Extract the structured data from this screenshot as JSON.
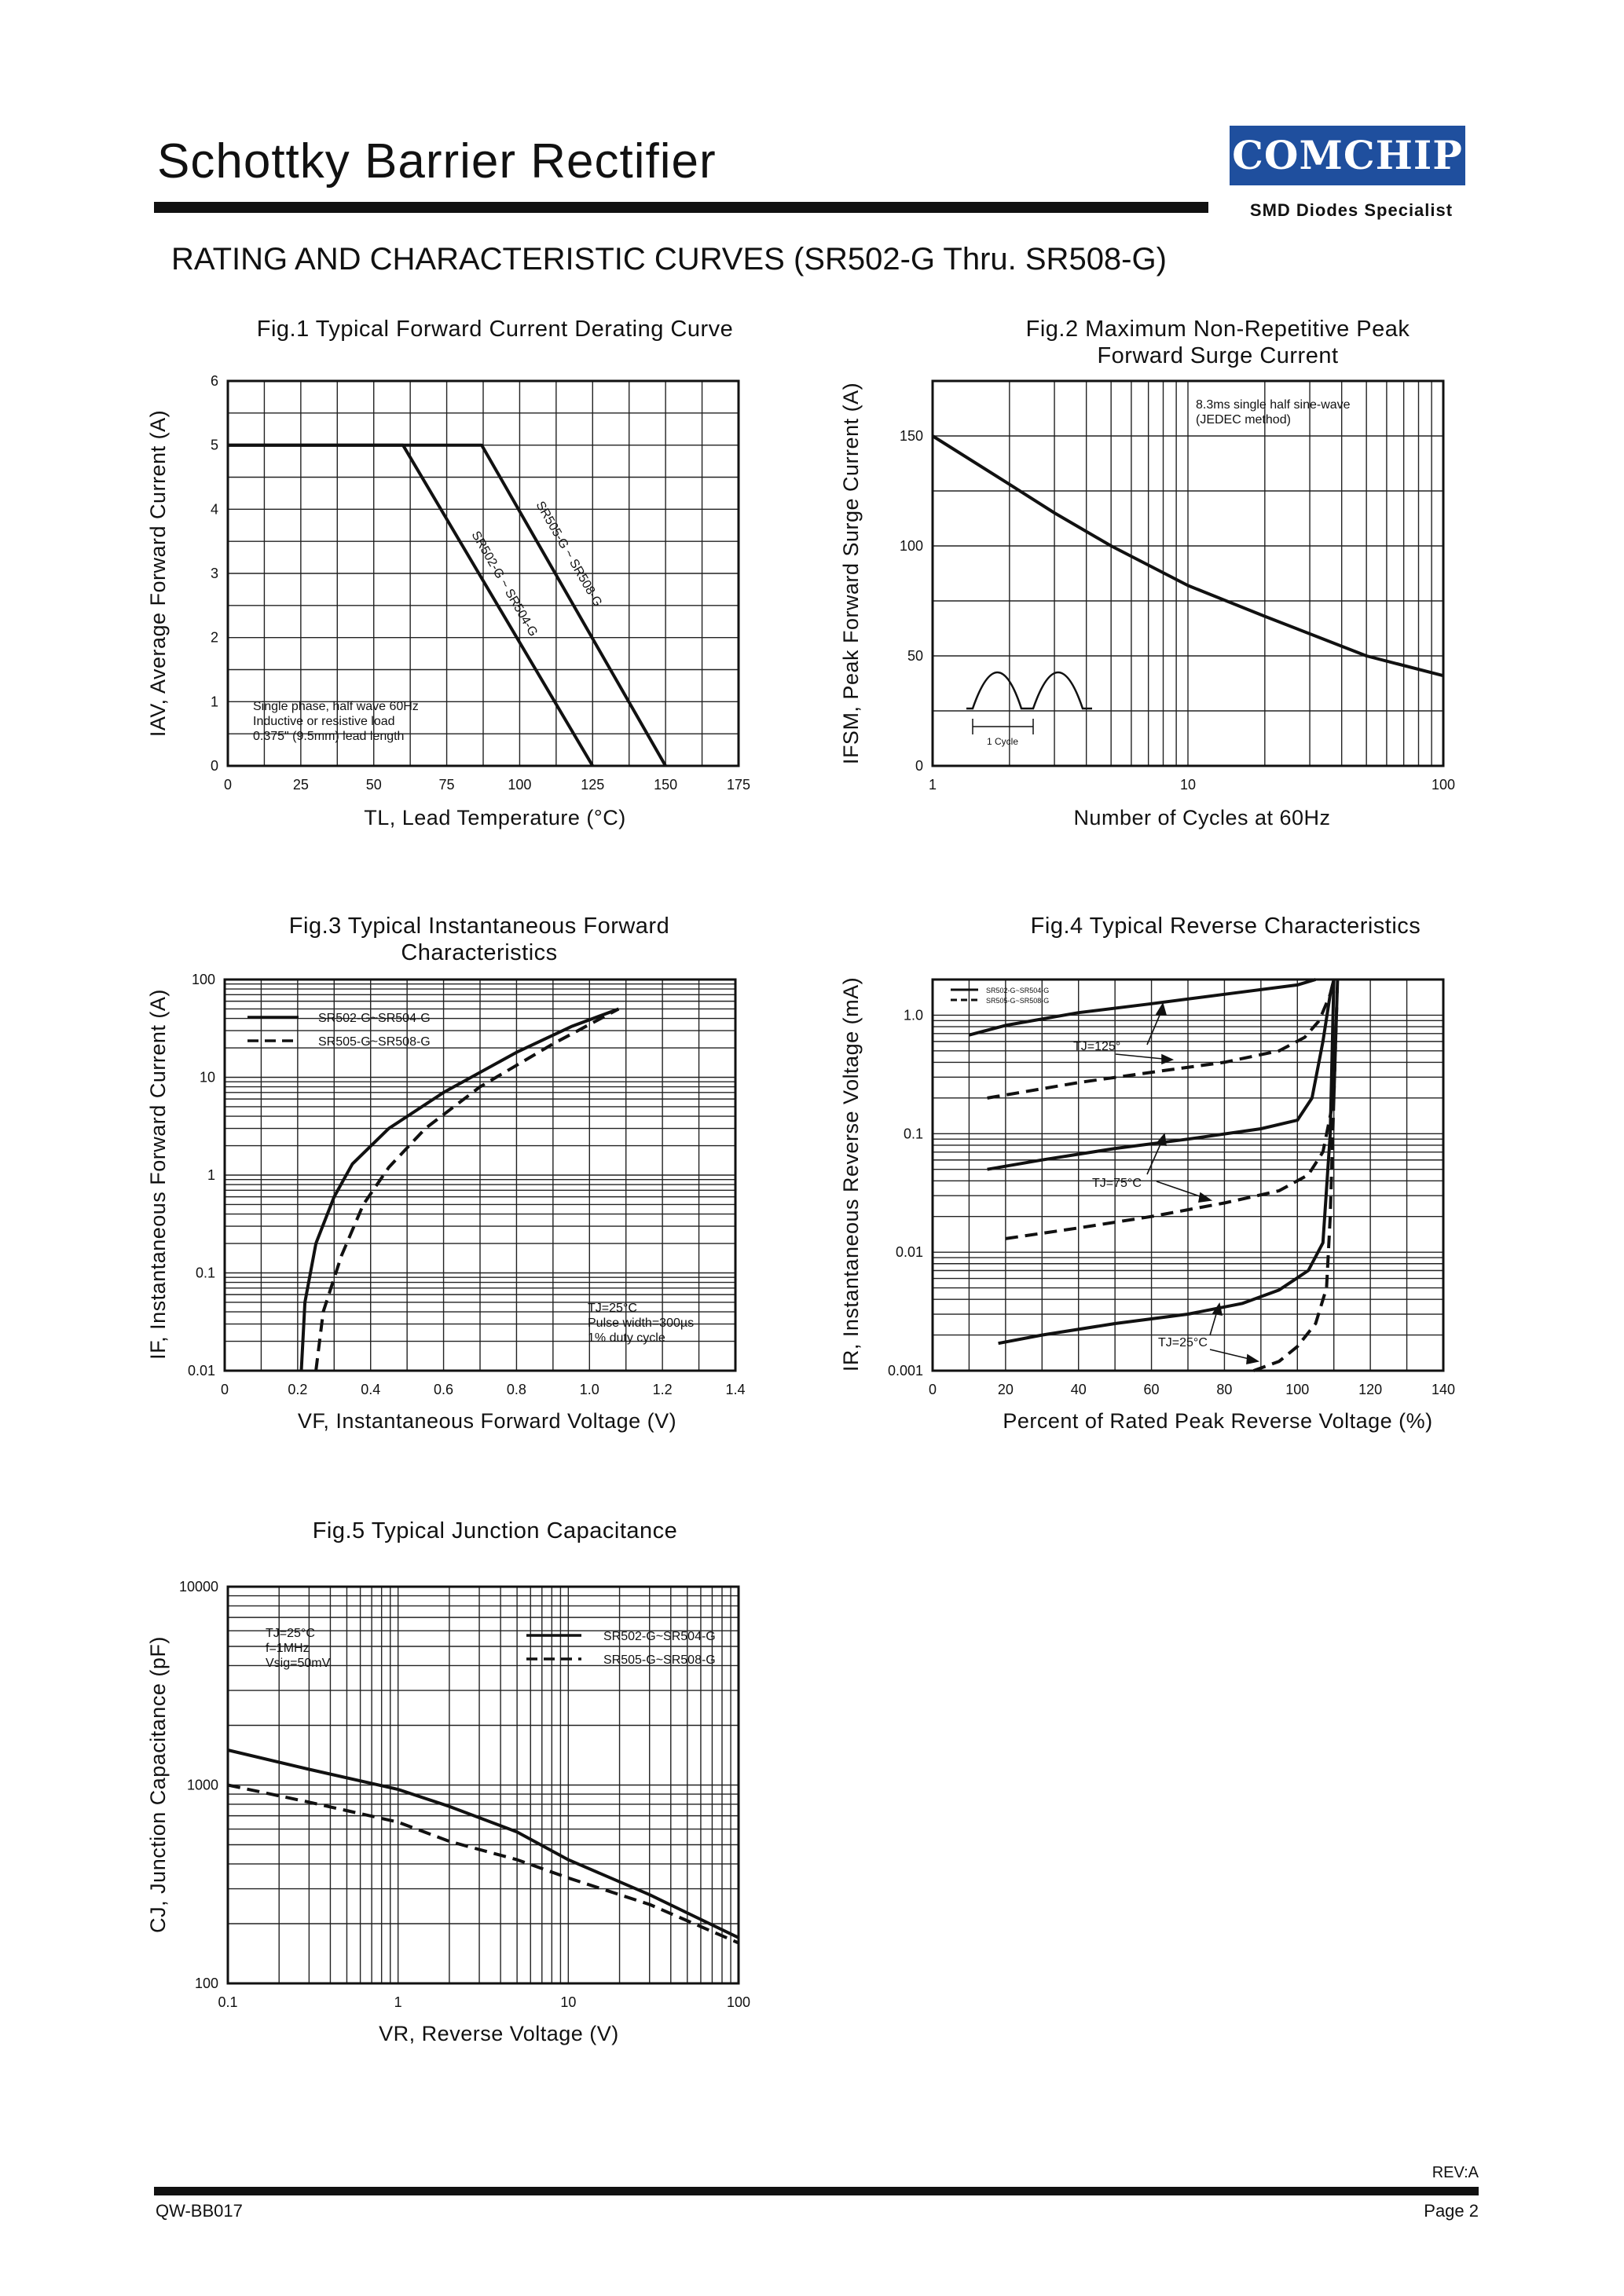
{
  "header": {
    "title": "Schottky Barrier Rectifier",
    "logo": "COMCHIP",
    "tagline": "SMD Diodes Specialist",
    "subtitle": "RATING AND CHARACTERISTIC CURVES (SR502-G Thru. SR508-G)"
  },
  "footer": {
    "rev": "REV:A",
    "doc": "QW-BB017",
    "page": "Page 2"
  },
  "colors": {
    "ink": "#111111",
    "grid": "#222222",
    "logo_bg": "#1f4f9e"
  },
  "chart_data": [
    {
      "id": "fig1",
      "type": "line",
      "title": "Fig.1 Typical Forward Current Derating Curve",
      "xlabel": "TL, Lead Temperature (°C)",
      "ylabel": "IAV, Average Forward Current (A)",
      "xlim": [
        0,
        175
      ],
      "ylim": [
        0,
        6
      ],
      "xticks": [
        0,
        25,
        50,
        75,
        100,
        125,
        150,
        175
      ],
      "yticks": [
        0,
        1,
        2,
        3,
        4,
        5,
        6
      ],
      "grid": true,
      "series": [
        {
          "name": "SR502-G ~ SR504-G",
          "style": "solid",
          "x": [
            0,
            60,
            125
          ],
          "y": [
            5,
            5,
            0
          ]
        },
        {
          "name": "SR505-G ~ SR508-G",
          "style": "solid",
          "x": [
            0,
            87,
            150
          ],
          "y": [
            5,
            5,
            0
          ]
        }
      ],
      "annotations": [
        "Single phase, half wave 60Hz",
        "Inductive or resistive load",
        "0.375\" (9.5mm) lead length"
      ]
    },
    {
      "id": "fig2",
      "type": "line",
      "title": "Fig.2 Maximum Non-Repetitive Peak Forward Surge Current",
      "xlabel": "Number of Cycles at 60Hz",
      "ylabel": "IFSM, Peak Forward Surge Current (A)",
      "xscale": "log",
      "xlim": [
        1,
        100
      ],
      "ylim": [
        0,
        175
      ],
      "xticks": [
        1,
        10,
        100
      ],
      "yticks": [
        0,
        50,
        100,
        150
      ],
      "grid": true,
      "series": [
        {
          "name": "IFSM",
          "style": "solid",
          "x": [
            1,
            2,
            3,
            5,
            10,
            20,
            50,
            100
          ],
          "y": [
            150,
            128,
            115,
            100,
            82,
            68,
            50,
            41
          ]
        }
      ],
      "annotations": [
        "8.3ms single half sine-wave",
        "(JEDEC method)",
        "1 Cycle"
      ]
    },
    {
      "id": "fig3",
      "type": "line",
      "title": "Fig.3 Typical Instantaneous Forward Characteristics",
      "xlabel": "VF, Instantaneous Forward Voltage (V)",
      "ylabel": "IF, Instantaneous Forward Current (A)",
      "yscale": "log",
      "xlim": [
        0,
        1.4
      ],
      "ylim": [
        0.01,
        100
      ],
      "xticks": [
        0,
        0.2,
        0.4,
        0.6,
        0.8,
        1.0,
        1.2,
        1.4
      ],
      "xticklabels": [
        "0",
        "0.2",
        "0.4",
        "0.6",
        "0.8",
        "1.0",
        "1.2",
        "1.4"
      ],
      "yticks": [
        0.01,
        0.1,
        1,
        10,
        100
      ],
      "yticklabels": [
        "0.01",
        "0.1",
        "1",
        "10",
        "100"
      ],
      "grid": true,
      "series": [
        {
          "name": "SR502-G~SR504-G",
          "style": "solid",
          "x": [
            0.21,
            0.22,
            0.25,
            0.3,
            0.35,
            0.45,
            0.6,
            0.8,
            0.95,
            1.08
          ],
          "y": [
            0.01,
            0.05,
            0.2,
            0.6,
            1.3,
            3,
            7,
            18,
            33,
            50
          ]
        },
        {
          "name": "SR505-G~SR508-G",
          "style": "dashed",
          "x": [
            0.25,
            0.27,
            0.32,
            0.38,
            0.45,
            0.55,
            0.7,
            0.9,
            1.08
          ],
          "y": [
            0.01,
            0.04,
            0.15,
            0.5,
            1.2,
            3,
            8,
            22,
            50
          ]
        }
      ],
      "annotations": [
        "TJ=25°C",
        "Pulse width=300µs",
        "1% duty cycle"
      ]
    },
    {
      "id": "fig4",
      "type": "line",
      "title": "Fig.4 Typical Reverse Characteristics",
      "xlabel": "Percent of Rated Peak Reverse Voltage (%)",
      "ylabel": "IR, Instantaneous Reverse Voltage (mA)",
      "yscale": "log",
      "xlim": [
        0,
        140
      ],
      "ylim": [
        0.001,
        2
      ],
      "xticks": [
        0,
        20,
        40,
        60,
        80,
        100,
        120,
        140
      ],
      "yticks": [
        0.001,
        0.01,
        0.1,
        1.0
      ],
      "yticklabels": [
        "0.001",
        "0.01",
        "0.1",
        "1.0"
      ],
      "grid": true,
      "series": [
        {
          "name": "SR502-G~SR504-G TJ=125°C",
          "style": "solid",
          "x": [
            10,
            20,
            40,
            60,
            80,
            100,
            105
          ],
          "y": [
            0.68,
            0.82,
            1.05,
            1.25,
            1.5,
            1.8,
            2
          ]
        },
        {
          "name": "SR505-G~SR508-G TJ=125°C",
          "style": "dashed",
          "x": [
            15,
            40,
            60,
            80,
            95,
            102,
            106,
            109,
            110
          ],
          "y": [
            0.2,
            0.27,
            0.33,
            0.4,
            0.5,
            0.65,
            0.9,
            1.5,
            2
          ]
        },
        {
          "name": "SR502-G~SR504-G TJ=75°C",
          "style": "solid",
          "x": [
            15,
            30,
            50,
            70,
            90,
            100,
            104,
            107,
            109,
            110
          ],
          "y": [
            0.05,
            0.06,
            0.075,
            0.09,
            0.11,
            0.13,
            0.2,
            0.6,
            1.5,
            2
          ]
        },
        {
          "name": "SR505-G~SR508-G TJ=75°C",
          "style": "dashed",
          "x": [
            20,
            40,
            60,
            80,
            95,
            103,
            107,
            110,
            111
          ],
          "y": [
            0.013,
            0.016,
            0.02,
            0.026,
            0.033,
            0.045,
            0.07,
            0.2,
            2
          ]
        },
        {
          "name": "SR502-G~SR504-G TJ=25°C",
          "style": "solid",
          "x": [
            18,
            30,
            50,
            70,
            85,
            95,
            103,
            107,
            109,
            110
          ],
          "y": [
            0.0017,
            0.002,
            0.0025,
            0.003,
            0.0037,
            0.0048,
            0.007,
            0.012,
            0.1,
            2
          ]
        },
        {
          "name": "SR505-G~SR508-G TJ=25°C",
          "style": "dashed",
          "x": [
            88,
            95,
            100,
            105,
            108,
            109,
            110,
            111
          ],
          "y": [
            0.001,
            0.0012,
            0.0016,
            0.0025,
            0.005,
            0.02,
            0.2,
            2
          ]
        }
      ],
      "legend": [
        "SR502-G~SR504-G",
        "SR505-G~SR508-G"
      ],
      "annotations": [
        "TJ=125°",
        "TJ=75°C",
        "TJ=25°C"
      ]
    },
    {
      "id": "fig5",
      "type": "line",
      "title": "Fig.5 Typical Junction Capacitance",
      "xlabel": "VR, Reverse Voltage (V)",
      "ylabel": "CJ, Junction Capacitance (pF)",
      "xscale": "log",
      "yscale": "log",
      "xlim": [
        0.1,
        100
      ],
      "ylim": [
        100,
        10000
      ],
      "xticks": [
        0.1,
        1,
        10,
        100
      ],
      "xticklabels": [
        "0.1",
        "1",
        "10",
        "100"
      ],
      "yticks": [
        100,
        1000,
        10000
      ],
      "yticklabels": [
        "100",
        "1000",
        "10000"
      ],
      "grid": true,
      "series": [
        {
          "name": "SR502-G~SR504-G",
          "style": "solid",
          "x": [
            0.1,
            0.3,
            1,
            2,
            5,
            10,
            30,
            100
          ],
          "y": [
            1500,
            1200,
            950,
            780,
            580,
            420,
            280,
            170
          ]
        },
        {
          "name": "SR505-G~SR508-G",
          "style": "dashed",
          "x": [
            0.1,
            0.3,
            1,
            2,
            5,
            10,
            30,
            100
          ],
          "y": [
            1000,
            820,
            650,
            520,
            420,
            340,
            250,
            160
          ]
        }
      ],
      "annotations": [
        "TJ=25°C",
        "f=1MHz",
        "Vsig=50mV"
      ]
    }
  ],
  "texts": {
    "fig1": {
      "title": "Fig.1 Typical Forward Current Derating Curve",
      "xlabel": "TL, Lead Temperature (°C)",
      "ylabel": "IAV, Average Forward Current (A)",
      "note1": "Single phase, half wave 60Hz",
      "note2": "Inductive or resistive load",
      "note3": "0.375\" (9.5mm) lead length",
      "label_a": "SR502-G ~ SR504-G",
      "label_b": "SR505-G ~ SR508-G"
    },
    "fig2": {
      "title1": "Fig.2 Maximum Non-Repetitive Peak",
      "title2": "Forward Surge Current",
      "xlabel": "Number of Cycles at 60Hz",
      "ylabel": "IFSM, Peak Forward Surge Current (A)",
      "note1": "8.3ms single half sine-wave",
      "note2": "(JEDEC method)",
      "cycle": "1 Cycle"
    },
    "fig3": {
      "title1": "Fig.3 Typical Instantaneous Forward",
      "title2": "Characteristics",
      "xlabel": "VF, Instantaneous Forward Voltage (V)",
      "ylabel": "IF, Instantaneous Forward Current (A)",
      "leg1": "SR502-G~SR504-G",
      "leg2": "SR505-G~SR508-G",
      "note1": "TJ=25°C",
      "note2": "Pulse width=300µs",
      "note3": "1% duty cycle"
    },
    "fig4": {
      "title": "Fig.4 Typical Reverse Characteristics",
      "xlabel": "Percent of Rated Peak Reverse Voltage (%)",
      "ylabel": "IR, Instantaneous Reverse Voltage (mA)",
      "leg1": "SR502-G~SR504-G",
      "leg2": "SR505-G~SR508-G",
      "t125": "TJ=125°",
      "t75": "TJ=75°C",
      "t25": "TJ=25°C"
    },
    "fig5": {
      "title": "Fig.5 Typical Junction Capacitance",
      "xlabel": "VR, Reverse Voltage (V)",
      "ylabel": "CJ, Junction Capacitance (pF)",
      "leg1": "SR502-G~SR504-G",
      "leg2": "SR505-G~SR508-G",
      "note1": "TJ=25°C",
      "note2": "f=1MHz",
      "note3": "Vsig=50mV"
    }
  }
}
